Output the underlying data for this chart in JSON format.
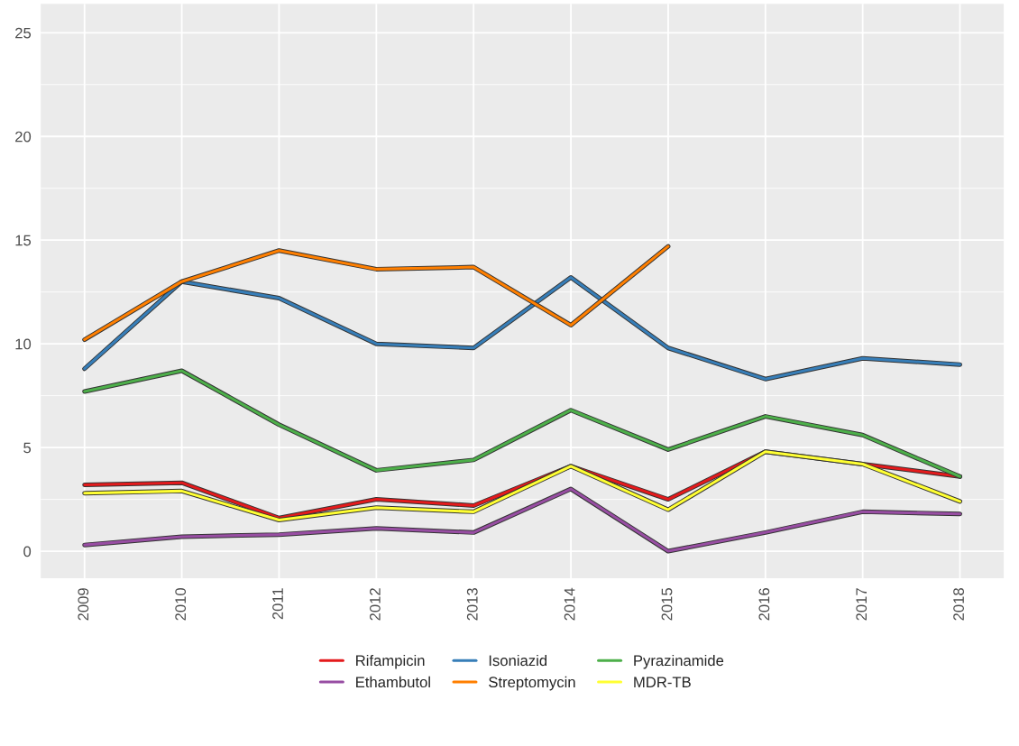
{
  "chart_data": {
    "type": "line",
    "categories": [
      "2009",
      "2010",
      "2011",
      "2012",
      "2013",
      "2014",
      "2015",
      "2016",
      "2017",
      "2018"
    ],
    "series": [
      {
        "name": "Rifampicin",
        "color": "#e41a1c",
        "values": [
          3.2,
          3.3,
          1.6,
          2.5,
          2.2,
          4.1,
          2.5,
          4.8,
          4.2,
          3.6
        ]
      },
      {
        "name": "Isoniazid",
        "color": "#377eb8",
        "values": [
          8.8,
          13.0,
          12.2,
          10.0,
          9.8,
          13.2,
          9.8,
          8.3,
          9.3,
          9.0
        ]
      },
      {
        "name": "Pyrazinamide",
        "color": "#4daf4a",
        "values": [
          7.7,
          8.7,
          6.1,
          3.9,
          4.4,
          6.8,
          4.9,
          6.5,
          5.6,
          3.6
        ]
      },
      {
        "name": "Ethambutol",
        "color": "#984ea3",
        "values": [
          0.3,
          0.7,
          0.8,
          1.1,
          0.9,
          3.0,
          0.0,
          0.9,
          1.9,
          1.8
        ]
      },
      {
        "name": "Streptomycin",
        "color": "#ff7f00",
        "values": [
          10.2,
          13.0,
          14.5,
          13.6,
          13.7,
          10.9,
          14.7,
          null,
          null,
          null
        ]
      },
      {
        "name": "MDR-TB",
        "color": "#ffff33",
        "values": [
          2.8,
          2.9,
          1.5,
          2.1,
          1.9,
          4.1,
          2.0,
          4.8,
          4.2,
          2.4
        ]
      }
    ],
    "ylim": [
      -1.3,
      26.4
    ],
    "yticks": [
      0,
      5,
      10,
      15,
      20,
      25
    ],
    "grid": true,
    "legend": "bottom",
    "line_style": "solid",
    "marker": "none"
  }
}
